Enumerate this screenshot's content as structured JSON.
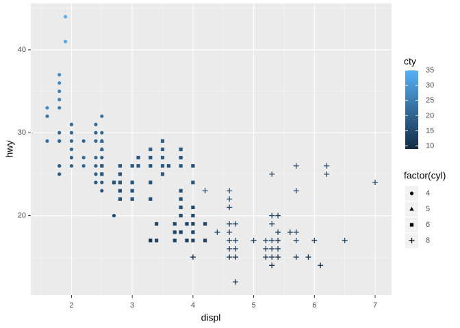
{
  "chart_data": {
    "type": "scatter",
    "x_label": "displ",
    "y_label": "hwy",
    "xlim": [
      1.33,
      7.27
    ],
    "xticks": [
      2,
      3,
      4,
      5,
      6,
      7
    ],
    "ylim": [
      10.4,
      45.6
    ],
    "yticks": [
      20,
      30,
      40
    ],
    "grid": true,
    "color_scale": {
      "title": "cty",
      "lim": [
        9,
        35
      ],
      "ticks": [
        10,
        15,
        20,
        25,
        30,
        35
      ],
      "low": "#132B43",
      "high": "#56B1F7"
    },
    "shape_legend_title": "factor(cyl)",
    "series": [
      {
        "name": "4",
        "shape": "circle",
        "x": [
          1.6,
          1.6,
          1.6,
          1.8,
          1.8,
          1.8,
          1.8,
          1.8,
          1.8,
          1.8,
          1.8,
          1.8,
          1.8,
          1.8,
          1.9,
          1.9,
          2.0,
          2.0,
          2.0,
          2.0,
          2.0,
          2.0,
          2.2,
          2.2,
          2.2,
          2.4,
          2.4,
          2.4,
          2.4,
          2.4,
          2.4,
          2.4,
          2.5,
          2.5,
          2.5,
          2.5,
          2.5,
          2.5,
          2.5,
          2.5,
          2.5,
          2.7
        ],
        "values": [
          33,
          32,
          29,
          29,
          29,
          26,
          25,
          37,
          35,
          36,
          33,
          34,
          30,
          26,
          44,
          41,
          31,
          30,
          29,
          28,
          27,
          26,
          27,
          29,
          26,
          27,
          30,
          31,
          26,
          24,
          29,
          25,
          32,
          30,
          29,
          27,
          26,
          25,
          24,
          23,
          28,
          20
        ],
        "cty": [
          28,
          24,
          23,
          18,
          21,
          18,
          18,
          28,
          26,
          28,
          25,
          26,
          21,
          19,
          35,
          33,
          21,
          21,
          21,
          20,
          19,
          19,
          21,
          21,
          20,
          21,
          21,
          22,
          19,
          18,
          21,
          19,
          23,
          21,
          20,
          19,
          19,
          18,
          18,
          18,
          20,
          15
        ]
      },
      {
        "name": "5",
        "shape": "triangle",
        "x": [
          2.5,
          2.5
        ],
        "values": [
          28,
          29
        ],
        "cty": [
          21,
          21
        ]
      },
      {
        "name": "6",
        "shape": "square",
        "x": [
          2.5,
          2.5,
          2.7,
          2.8,
          2.8,
          2.8,
          2.8,
          2.8,
          3.0,
          3.0,
          3.0,
          3.0,
          3.1,
          3.1,
          3.3,
          3.3,
          3.3,
          3.3,
          3.3,
          3.3,
          3.4,
          3.4,
          3.5,
          3.5,
          3.5,
          3.5,
          3.5,
          3.6,
          3.7,
          3.7,
          3.7,
          3.8,
          3.8,
          3.8,
          3.8,
          3.8,
          3.8,
          3.8,
          3.8,
          3.9,
          3.9,
          4.0,
          4.0,
          4.0,
          4.0,
          4.0,
          4.0,
          4.0,
          4.2,
          4.2
        ],
        "values": [
          26,
          25,
          24,
          26,
          25,
          24,
          23,
          22,
          26,
          24,
          22,
          23,
          26,
          27,
          24,
          28,
          22,
          17,
          27,
          26,
          19,
          17,
          29,
          28,
          26,
          27,
          25,
          26,
          19,
          17,
          18,
          28,
          27,
          26,
          23,
          22,
          21,
          20,
          18,
          17,
          19,
          24,
          26,
          21,
          20,
          19,
          18,
          17,
          17,
          19
        ],
        "cty": [
          18,
          18,
          17,
          18,
          17,
          17,
          16,
          16,
          18,
          17,
          17,
          17,
          18,
          18,
          17,
          19,
          16,
          11,
          18,
          17,
          15,
          15,
          19,
          19,
          18,
          19,
          18,
          17,
          15,
          14,
          15,
          18,
          18,
          18,
          17,
          16,
          16,
          15,
          14,
          13,
          14,
          17,
          16,
          15,
          15,
          14,
          14,
          14,
          14,
          15
        ]
      },
      {
        "name": "8",
        "shape": "plus",
        "x": [
          4.0,
          4.2,
          4.4,
          4.6,
          4.6,
          4.6,
          4.6,
          4.6,
          4.6,
          4.6,
          4.6,
          4.7,
          4.7,
          4.7,
          4.7,
          4.7,
          5.0,
          5.2,
          5.2,
          5.2,
          5.3,
          5.3,
          5.3,
          5.3,
          5.3,
          5.3,
          5.3,
          5.4,
          5.4,
          5.4,
          5.4,
          5.4,
          5.6,
          5.7,
          5.7,
          5.7,
          5.7,
          5.7,
          5.9,
          6.0,
          6.1,
          6.2,
          6.2,
          6.5,
          7.0
        ],
        "values": [
          15,
          23,
          18,
          23,
          22,
          21,
          19,
          17,
          16,
          15,
          18,
          19,
          17,
          16,
          15,
          12,
          17,
          17,
          16,
          15,
          25,
          20,
          19,
          17,
          16,
          15,
          14,
          20,
          18,
          17,
          16,
          15,
          18,
          26,
          23,
          18,
          17,
          15,
          15,
          17,
          14,
          26,
          25,
          17,
          24
        ],
        "cty": [
          11,
          16,
          13,
          16,
          16,
          15,
          14,
          13,
          13,
          12,
          14,
          14,
          13,
          13,
          11,
          9,
          13,
          13,
          11,
          11,
          15,
          14,
          14,
          13,
          12,
          11,
          11,
          13,
          12,
          12,
          12,
          11,
          12,
          16,
          15,
          13,
          13,
          11,
          11,
          12,
          11,
          16,
          15,
          14,
          15
        ]
      }
    ]
  }
}
